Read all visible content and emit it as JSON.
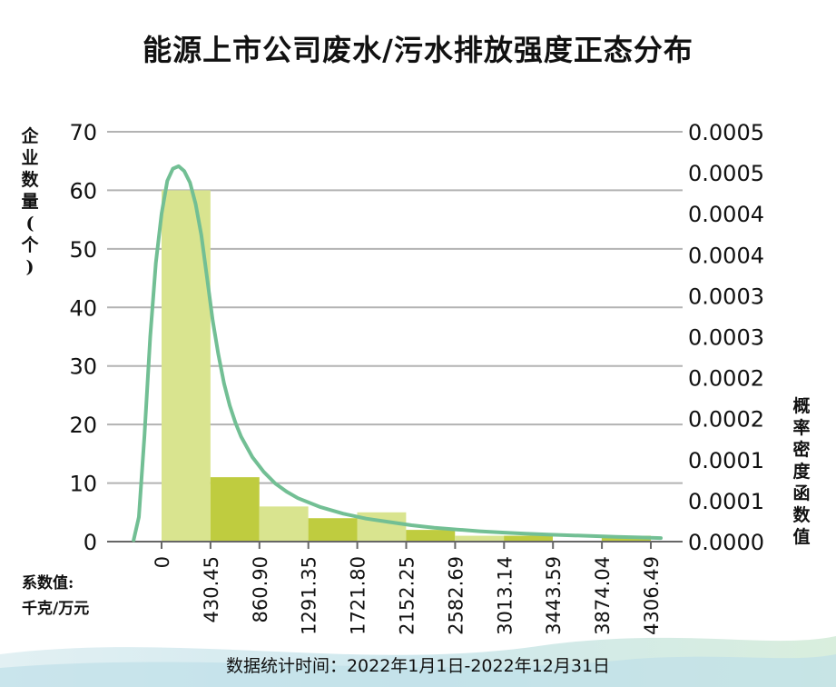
{
  "chart_data": {
    "type": "bar",
    "title": "能源上市公司废水/污水排放强度正态分布",
    "ylabel": "企业数量(个)",
    "ylabel2": "概率密度函数值",
    "xlabel_line1": "系数值:",
    "xlabel_line2": "千克/万元",
    "footer": "数据统计时间：2022年1月1日-2022年12月31日",
    "x_ticks": [
      "0",
      "430.45",
      "860.90",
      "1291.35",
      "1721.80",
      "2152.25",
      "2582.69",
      "3013.14",
      "3443.59",
      "3874.04",
      "4306.49"
    ],
    "y_ticks": [
      "0",
      "10",
      "20",
      "30",
      "40",
      "50",
      "60",
      "70"
    ],
    "ylim": [
      0,
      70
    ],
    "y2_ticks": [
      "0.0000",
      "0.0001",
      "0.0001",
      "0.0002",
      "0.0002",
      "0.0003",
      "0.0003",
      "0.0004",
      "0.0004",
      "0.0005",
      "0.0005"
    ],
    "y2lim": [
      0,
      0.0005
    ],
    "bins": [
      {
        "from": 0,
        "to": 430.45,
        "count": 60
      },
      {
        "from": 430.45,
        "to": 860.9,
        "count": 11
      },
      {
        "from": 860.9,
        "to": 1291.35,
        "count": 6
      },
      {
        "from": 1291.35,
        "to": 1721.8,
        "count": 4
      },
      {
        "from": 1721.8,
        "to": 2152.25,
        "count": 5
      },
      {
        "from": 2152.25,
        "to": 2582.69,
        "count": 2
      },
      {
        "from": 2582.69,
        "to": 3013.14,
        "count": 1
      },
      {
        "from": 3013.14,
        "to": 3443.59,
        "count": 1
      },
      {
        "from": 3443.59,
        "to": 3874.04,
        "count": 0
      },
      {
        "from": 3874.04,
        "to": 4306.49,
        "count": 1
      }
    ],
    "curve": {
      "x": [
        -246,
        -200,
        -150,
        -100,
        -50,
        0,
        50,
        100,
        150,
        200,
        250,
        300,
        350,
        400,
        450,
        500,
        550,
        600,
        650,
        700,
        800,
        900,
        1000,
        1100,
        1200,
        1400,
        1600,
        1800,
        2000,
        2200,
        2400,
        2600,
        2800,
        3000,
        3200,
        3400,
        3600,
        3800,
        4000,
        4200,
        4394
      ],
      "y": [
        1.8e-06,
        3e-05,
        0.00013,
        0.00025,
        0.00034,
        0.0004,
        0.00044,
        0.000455,
        0.000458,
        0.000452,
        0.000438,
        0.000412,
        0.000374,
        0.000322,
        0.00027,
        0.000228,
        0.000193,
        0.000166,
        0.000145,
        0.000128,
        0.000103,
        8.5e-05,
        7.1e-05,
        6.1e-05,
        5.3e-05,
        4.2e-05,
        3.4e-05,
        2.8e-05,
        2.4e-05,
        2e-05,
        1.7e-05,
        1.47e-05,
        1.26e-05,
        1.11e-05,
        9.7e-06,
        8.7e-06,
        7.7e-06,
        6.8e-06,
        5.9e-06,
        5.1e-06,
        4.3e-06
      ]
    },
    "colors": {
      "bar_light": "#d9e48f",
      "bar_dark": "#bfcc3f",
      "curve": "#72bf94",
      "grid": "#b3b3b3",
      "axis": "#666666",
      "text": "#111111"
    },
    "grid": true
  }
}
